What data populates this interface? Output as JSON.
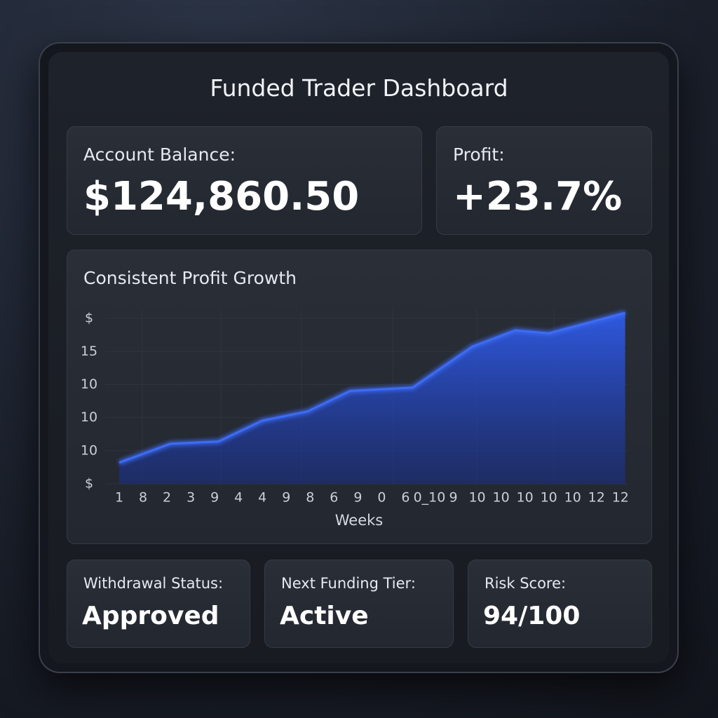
{
  "header": {
    "title": "Funded Trader Dashboard"
  },
  "cards": [
    {
      "label": "Account Balance:",
      "value": "$124,860.50"
    },
    {
      "label": "Profit:",
      "value": "+23.7%"
    }
  ],
  "chart": {
    "type": "area",
    "title": "Consistent Profit Growth",
    "x_label": "Weeks",
    "categories": [
      "1",
      "8",
      "2",
      "3",
      "9",
      "4",
      "4",
      "9",
      "8",
      "6",
      "9",
      "0",
      "6",
      "0_10",
      "9",
      "10",
      "10",
      "10",
      "10",
      "10",
      "12",
      "12"
    ],
    "x": [
      0,
      2.14,
      4.16,
      6.0,
      7.9,
      9.68,
      12.3,
      14.8,
      16.6,
      18.0,
      21.2
    ],
    "values": [
      0.64,
      1.21,
      1.28,
      1.91,
      2.19,
      2.81,
      2.91,
      4.15,
      4.64,
      4.55,
      5.17
    ],
    "xlim": [
      0,
      21.3
    ],
    "ylim": [
      0,
      5.3
    ],
    "yticks": [
      {
        "value": 0,
        "label": "$"
      },
      {
        "value": 1,
        "label": "10"
      },
      {
        "value": 2,
        "label": "10"
      },
      {
        "value": 3,
        "label": "10"
      },
      {
        "value": 4,
        "label": "15"
      },
      {
        "value": 5,
        "label": "$"
      }
    ],
    "color": "#3d6cf5",
    "grid": true
  },
  "status_cards": [
    {
      "label": "Withdrawal Status:",
      "value": "Approved"
    },
    {
      "label": "Next Funding Tier:",
      "value": "Active"
    },
    {
      "label": "Risk Score:",
      "value": "94/100"
    }
  ]
}
